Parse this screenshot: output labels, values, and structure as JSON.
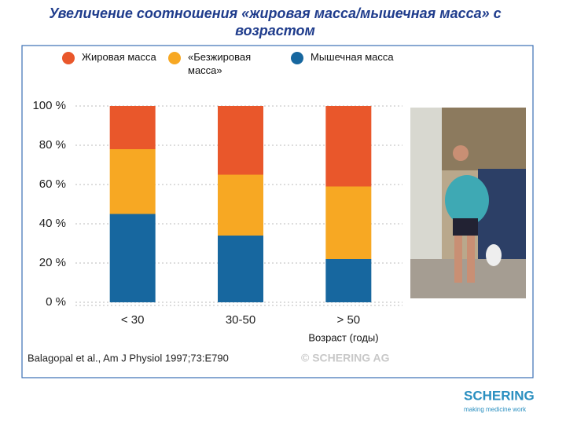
{
  "chart_data": {
    "type": "stacked-bar",
    "title": "Увеличение соотношения «жировая масса/мышечная масса» с возрастом",
    "x_label": "Возраст (годы)",
    "categories": [
      "< 30",
      "30-50",
      "> 50"
    ],
    "series": [
      {
        "name": "Мышечная масса",
        "color": "#17679f",
        "values": [
          45,
          34,
          22
        ]
      },
      {
        "name": "«Безжировая масса»",
        "color": "#f7a823",
        "values": [
          33,
          31,
          37
        ]
      },
      {
        "name": "Жировая масса",
        "color": "#e9572b",
        "values": [
          22,
          35,
          41
        ]
      }
    ],
    "legend_order": [
      2,
      1,
      0
    ],
    "ylim": [
      0,
      100
    ],
    "yticks": [
      {
        "value": 0,
        "label": "0 %"
      },
      {
        "value": 20,
        "label": "20 %"
      },
      {
        "value": 40,
        "label": "40 %"
      },
      {
        "value": 60,
        "label": "60 %"
      },
      {
        "value": 80,
        "label": "80 %"
      },
      {
        "value": 100,
        "label": "100 %"
      }
    ],
    "grid": true
  },
  "footer": {
    "source": "Balagopal et al., Am J Physiol 1997;73:E790",
    "copyright": "© SCHERING AG",
    "logo": "SCHERING",
    "tagline": "making medicine work"
  }
}
